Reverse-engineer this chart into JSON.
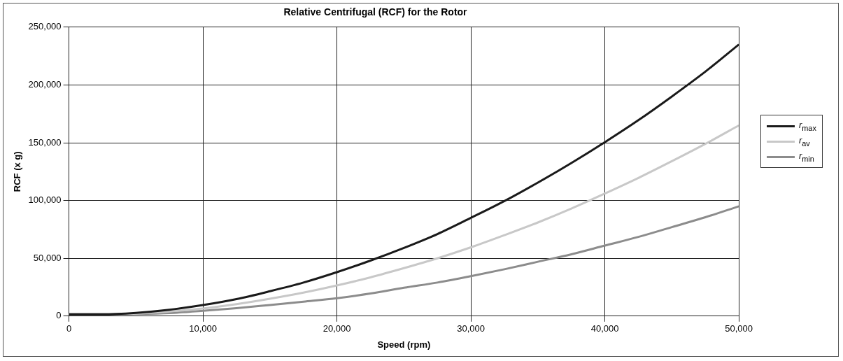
{
  "chart_data": {
    "type": "line",
    "title": "Relative Centrifugal (RCF) for the Rotor",
    "xlabel": "Speed (rpm)",
    "ylabel": "RCF (x g)",
    "x": [
      0,
      2500,
      5000,
      7500,
      10000,
      12500,
      15000,
      17500,
      20000,
      22500,
      25000,
      27500,
      30000,
      32500,
      35000,
      37500,
      40000,
      42500,
      45000,
      47500,
      50000
    ],
    "series": [
      {
        "name": "r$_{max}$",
        "color": "#1a1a1a",
        "values": [
          1500,
          1500,
          2800,
          5500,
          9500,
          14700,
          21500,
          29000,
          38000,
          48000,
          59000,
          71000,
          85000,
          99500,
          115500,
          132500,
          150500,
          169500,
          190000,
          211500,
          235000
        ]
      },
      {
        "name": "r$_{av}$",
        "color": "#c8c8c8",
        "values": [
          1500,
          1500,
          2200,
          4000,
          6600,
          10300,
          15000,
          20300,
          26500,
          33500,
          41500,
          50000,
          59500,
          70000,
          81000,
          93000,
          106000,
          119500,
          134000,
          149000,
          165000
        ]
      },
      {
        "name": "r$_{min}$",
        "color": "#8c8c8c",
        "values": [
          1500,
          1500,
          1800,
          2600,
          4500,
          6800,
          9600,
          12500,
          15500,
          19500,
          24500,
          29000,
          34500,
          40500,
          47000,
          53500,
          61000,
          68500,
          77000,
          85500,
          95000
        ]
      }
    ],
    "xlim": [
      0,
      50000
    ],
    "xticks": [
      0,
      {
        "value": 10000,
        "label": "10,000"
      },
      {
        "value": 20000,
        "label": "20,000"
      },
      {
        "value": 30000,
        "label": "30,000"
      },
      {
        "value": 40000,
        "label": "40,000"
      },
      {
        "value": 50000,
        "label": "50,000"
      }
    ],
    "ylim": [
      0,
      250000
    ],
    "yticks": [
      0,
      {
        "value": 50000,
        "label": "50,000"
      },
      {
        "value": 100000,
        "label": "100,000"
      },
      {
        "value": 150000,
        "label": "150,000"
      },
      {
        "value": 200000,
        "label": "200,000"
      },
      {
        "value": 250000,
        "label": "250,000"
      }
    ],
    "grid": true,
    "legend": "right",
    "marker": "none",
    "line_style": "solid"
  }
}
